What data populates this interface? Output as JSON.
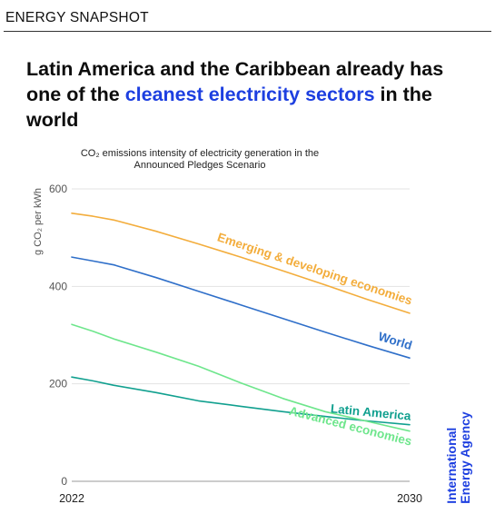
{
  "header": {
    "title": "ENERGY SNAPSHOT"
  },
  "headline": {
    "part1": "Latin America and the Caribbean already has one of the ",
    "highlight": "cleanest electricity sectors",
    "part2": " in the world"
  },
  "brand": {
    "line1": "International",
    "line2": "Energy Agency",
    "color": "#1d3fe0"
  },
  "chart_data": {
    "type": "line",
    "title_line1": "CO₂ emissions intensity of electricity generation in the",
    "title_line2": "Announced Pledges Scenario",
    "ylabel": "g CO₂ per kWh",
    "xlabel": "",
    "xlim": [
      2022,
      2030
    ],
    "ylim": [
      0,
      600
    ],
    "yticks": [
      0,
      200,
      400,
      600
    ],
    "xtick_labels": [
      "2022",
      "2030"
    ],
    "grid": true,
    "series": [
      {
        "name": "Emerging & developing economies",
        "color": "#f3ad3c",
        "x": [
          2022,
          2022.5,
          2023,
          2024,
          2025,
          2026,
          2027,
          2028,
          2029,
          2030
        ],
        "y": [
          550,
          544,
          536,
          513,
          487,
          460,
          432,
          403,
          373,
          345
        ]
      },
      {
        "name": "World",
        "color": "#2f6fc9",
        "x": [
          2022,
          2022.5,
          2023,
          2024,
          2025,
          2026,
          2027,
          2028,
          2029,
          2030
        ],
        "y": [
          460,
          452,
          444,
          418,
          390,
          362,
          334,
          306,
          279,
          253
        ]
      },
      {
        "name": "Latin America",
        "color": "#11a08f",
        "x": [
          2022,
          2022.5,
          2023,
          2024,
          2025,
          2026,
          2027,
          2028,
          2029,
          2030
        ],
        "y": [
          214,
          206,
          197,
          182,
          165,
          154,
          143,
          133,
          124,
          116
        ]
      },
      {
        "name": "Advanced economies",
        "color": "#6ee68c",
        "x": [
          2022,
          2022.5,
          2023,
          2024,
          2025,
          2026,
          2027,
          2028,
          2029,
          2030
        ],
        "y": [
          322,
          308,
          292,
          265,
          236,
          202,
          170,
          143,
          123,
          103
        ]
      }
    ]
  }
}
